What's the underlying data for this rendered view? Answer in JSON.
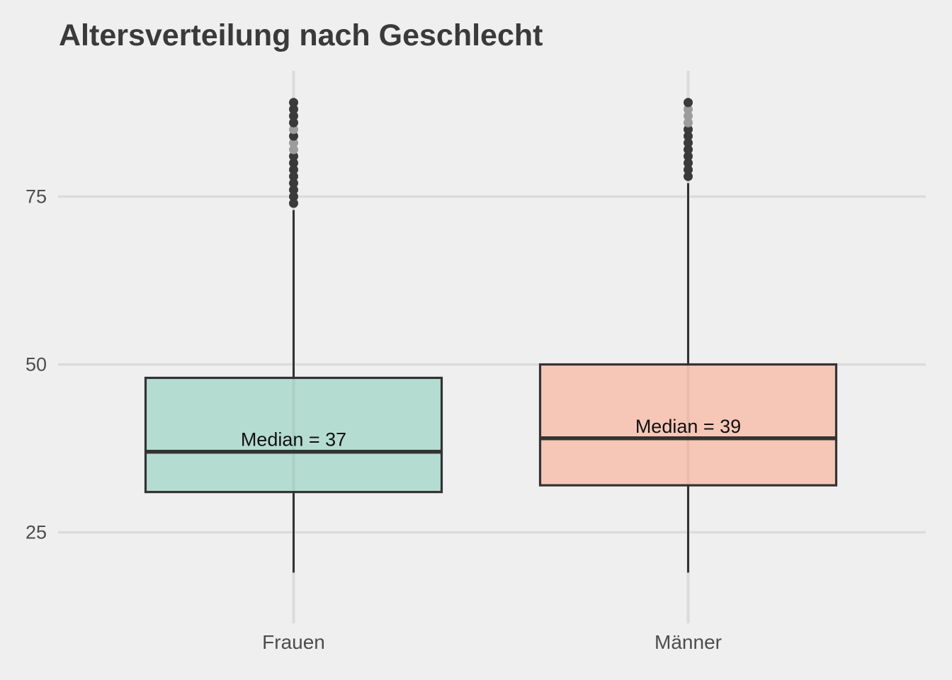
{
  "colors": {
    "background": "#EFEFEF",
    "grid": "#DBDBDB",
    "box_stroke": "#333333",
    "whisker": "#333333",
    "outlier": "#3A3A3A",
    "outlier_faded": "#9C9C9C",
    "title": "#3A3A3A",
    "axis_text": "#4D4D4D",
    "median_label": "#111111"
  },
  "chart_data": {
    "type": "boxplot",
    "title": "Altersverteilung nach Geschlecht",
    "xlabel": "",
    "ylabel": "",
    "yticks": [
      25,
      50,
      75
    ],
    "ylim": [
      10.5,
      94
    ],
    "grid": true,
    "legend": false,
    "categories": [
      "Frauen",
      "Männer"
    ],
    "series": [
      {
        "name": "Frauen",
        "fill": "#B5DCD0",
        "whisker_low": 19,
        "q1": 31,
        "median": 37,
        "q3": 48,
        "whisker_high": 73,
        "outliers": [
          74,
          75,
          76,
          77,
          78,
          79,
          80,
          81,
          82,
          83,
          84,
          85,
          86,
          87,
          88,
          89
        ],
        "faded_outliers": [
          82,
          83,
          85
        ],
        "median_label": "Median = 37"
      },
      {
        "name": "Männer",
        "fill": "#F6C7B7",
        "whisker_low": 19,
        "q1": 32,
        "median": 39,
        "q3": 50,
        "whisker_high": 77,
        "outliers": [
          78,
          79,
          80,
          81,
          82,
          83,
          84,
          85,
          86,
          87,
          88,
          89
        ],
        "faded_outliers": [
          86,
          87,
          88
        ],
        "median_label": "Median = 39"
      }
    ]
  }
}
